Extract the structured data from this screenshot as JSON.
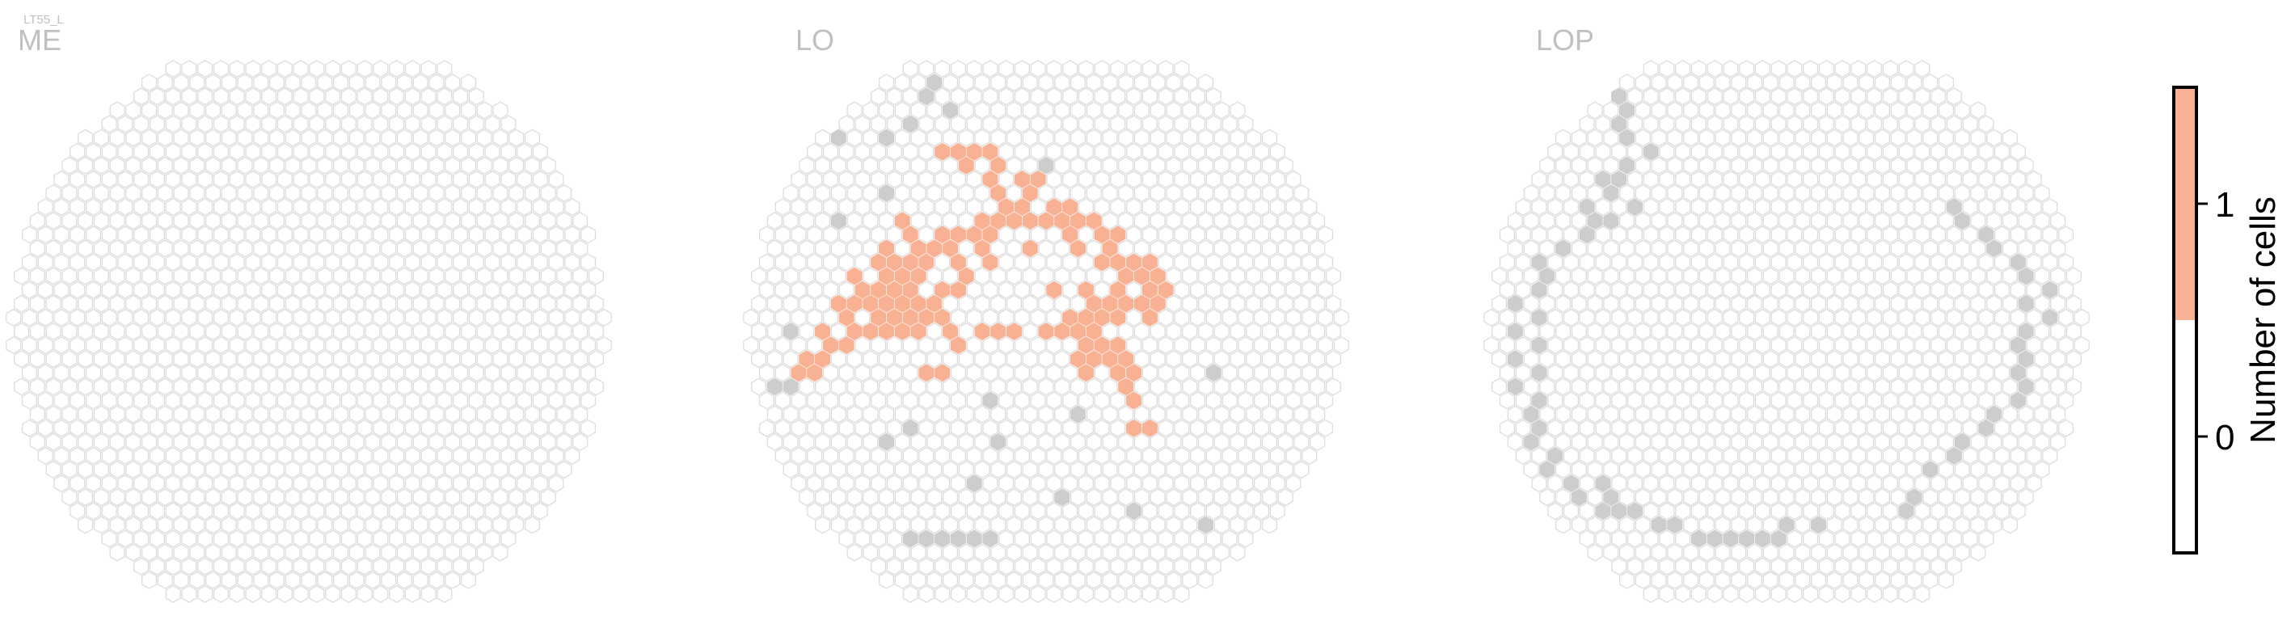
{
  "chart_data": {
    "type": "heatmap",
    "subtitle": "LT55_L",
    "colors": {
      "empty_fill": "#ffffff",
      "empty_stroke": "#dcdcdc",
      "value_fill": "#f8b193",
      "edge_fill": "#cdcdcd"
    },
    "colorbar": {
      "label": "Number of cells",
      "ticks": [
        0,
        1
      ],
      "range": [
        -0.5,
        1.5
      ],
      "bins": [
        {
          "from": -0.5,
          "to": 0.5,
          "color": "#ffffff"
        },
        {
          "from": 0.5,
          "to": 1.5,
          "color": "#f8b193"
        }
      ]
    },
    "panels": [
      {
        "title": "ME",
        "cells_with_value_1": [],
        "edge_cells": []
      },
      {
        "title": "LO",
        "cells_with_value_1": [
          [
            -7,
            -13
          ],
          [
            -6,
            -13
          ],
          [
            -5,
            -13
          ],
          [
            -4,
            -13
          ],
          [
            -5,
            -12
          ],
          [
            -3,
            -12
          ],
          [
            -4,
            -11
          ],
          [
            -2,
            -11
          ],
          [
            -1,
            -11
          ],
          [
            -3,
            -10
          ],
          [
            -1,
            -10
          ],
          [
            -3,
            -9
          ],
          [
            -2,
            -9
          ],
          [
            0,
            -9
          ],
          [
            1,
            -9
          ],
          [
            -9,
            -8
          ],
          [
            -4,
            -8
          ],
          [
            -3,
            -8
          ],
          [
            -2,
            -8
          ],
          [
            -1,
            -8
          ],
          [
            0,
            -8
          ],
          [
            1,
            -8
          ],
          [
            2,
            -8
          ],
          [
            3,
            -8
          ],
          [
            -9,
            -7
          ],
          [
            -7,
            -7
          ],
          [
            -6,
            -7
          ],
          [
            -5,
            -7
          ],
          [
            -4,
            -7
          ],
          [
            1,
            -7
          ],
          [
            3,
            -7
          ],
          [
            4,
            -7
          ],
          [
            -10,
            -6
          ],
          [
            -8,
            -6
          ],
          [
            -7,
            -6
          ],
          [
            -6,
            -6
          ],
          [
            -4,
            -6
          ],
          [
            -1,
            -6
          ],
          [
            2,
            -6
          ],
          [
            4,
            -6
          ],
          [
            -11,
            -5
          ],
          [
            -10,
            -5
          ],
          [
            -9,
            -5
          ],
          [
            -8,
            -5
          ],
          [
            -6,
            -5
          ],
          [
            -4,
            -5
          ],
          [
            3,
            -5
          ],
          [
            4,
            -5
          ],
          [
            5,
            -5
          ],
          [
            6,
            -5
          ],
          [
            -12,
            -4
          ],
          [
            -10,
            -4
          ],
          [
            -9,
            -4
          ],
          [
            -8,
            -4
          ],
          [
            -5,
            -4
          ],
          [
            5,
            -4
          ],
          [
            6,
            -4
          ],
          [
            7,
            -4
          ],
          [
            -12,
            -3
          ],
          [
            -11,
            -3
          ],
          [
            -10,
            -3
          ],
          [
            -9,
            -3
          ],
          [
            -7,
            -3
          ],
          [
            -6,
            -3
          ],
          [
            0,
            -3
          ],
          [
            2,
            -3
          ],
          [
            4,
            -3
          ],
          [
            6,
            -3
          ],
          [
            7,
            -3
          ],
          [
            -13,
            -2
          ],
          [
            -12,
            -2
          ],
          [
            -11,
            -2
          ],
          [
            -10,
            -2
          ],
          [
            -9,
            -2
          ],
          [
            -8,
            -2
          ],
          [
            -7,
            -2
          ],
          [
            3,
            -2
          ],
          [
            4,
            -2
          ],
          [
            5,
            -2
          ],
          [
            6,
            -2
          ],
          [
            7,
            -2
          ],
          [
            -13,
            -1
          ],
          [
            -11,
            -1
          ],
          [
            -10,
            -1
          ],
          [
            -9,
            -1
          ],
          [
            -8,
            -1
          ],
          [
            -7,
            -1
          ],
          [
            1,
            -1
          ],
          [
            2,
            -1
          ],
          [
            3,
            -1
          ],
          [
            4,
            -1
          ],
          [
            6,
            -1
          ],
          [
            -14,
            0
          ],
          [
            -12,
            0
          ],
          [
            -11,
            0
          ],
          [
            -10,
            0
          ],
          [
            -9,
            0
          ],
          [
            -8,
            0
          ],
          [
            -6,
            0
          ],
          [
            -4,
            0
          ],
          [
            -3,
            0
          ],
          [
            -2,
            0
          ],
          [
            0,
            0
          ],
          [
            1,
            0
          ],
          [
            2,
            0
          ],
          [
            3,
            0
          ],
          [
            -14,
            1
          ],
          [
            -13,
            1
          ],
          [
            -6,
            1
          ],
          [
            2,
            1
          ],
          [
            3,
            1
          ],
          [
            4,
            1
          ],
          [
            -15,
            2
          ],
          [
            -14,
            2
          ],
          [
            2,
            2
          ],
          [
            3,
            2
          ],
          [
            4,
            2
          ],
          [
            5,
            2
          ],
          [
            -16,
            3
          ],
          [
            -15,
            3
          ],
          [
            -8,
            3
          ],
          [
            -7,
            3
          ],
          [
            2,
            3
          ],
          [
            4,
            3
          ],
          [
            5,
            3
          ],
          [
            5,
            4
          ],
          [
            5,
            5
          ],
          [
            5,
            7
          ],
          [
            6,
            7
          ]
        ],
        "edge_cells": [
          [
            -7,
            -18
          ],
          [
            -8,
            -17
          ],
          [
            -6,
            -16
          ],
          [
            -9,
            -15
          ],
          [
            -10,
            -14
          ],
          [
            -13,
            -14
          ],
          [
            0,
            -12
          ],
          [
            -10,
            -10
          ],
          [
            -13,
            -8
          ],
          [
            2,
            -6
          ],
          [
            4,
            -2
          ],
          [
            -16,
            0
          ],
          [
            10,
            3
          ],
          [
            -17,
            4
          ],
          [
            -16,
            4
          ],
          [
            -4,
            5
          ],
          [
            2,
            6
          ],
          [
            -9,
            7
          ],
          [
            -10,
            8
          ],
          [
            -3,
            8
          ],
          [
            -5,
            11
          ],
          [
            1,
            12
          ],
          [
            5,
            13
          ],
          [
            10,
            14
          ],
          [
            -9,
            15
          ],
          [
            -8,
            15
          ],
          [
            -7,
            15
          ],
          [
            -6,
            15
          ],
          [
            -5,
            15
          ],
          [
            -4,
            15
          ]
        ]
      },
      {
        "title": "LOP",
        "cells_with_value_1": [],
        "edge_cells": [
          [
            -11,
            -17
          ],
          [
            -10,
            -16
          ],
          [
            -11,
            -15
          ],
          [
            -10,
            -14
          ],
          [
            -9,
            -13
          ],
          [
            -10,
            -12
          ],
          [
            -11,
            -11
          ],
          [
            -12,
            -11
          ],
          [
            -11,
            -10
          ],
          [
            -10,
            -9
          ],
          [
            -13,
            -9
          ],
          [
            -12,
            -8
          ],
          [
            -11,
            -8
          ],
          [
            -13,
            -7
          ],
          [
            -14,
            -6
          ],
          [
            -16,
            -5
          ],
          [
            -15,
            -4
          ],
          [
            -16,
            -3
          ],
          [
            -17,
            -2
          ],
          [
            -16,
            -1
          ],
          [
            -17,
            0
          ],
          [
            -16,
            1
          ],
          [
            -17,
            2
          ],
          [
            -16,
            3
          ],
          [
            -17,
            4
          ],
          [
            -16,
            5
          ],
          [
            -16,
            6
          ],
          [
            -16,
            7
          ],
          [
            -16,
            8
          ],
          [
            -15,
            9
          ],
          [
            -15,
            10
          ],
          [
            -14,
            11
          ],
          [
            -12,
            11
          ],
          [
            -13,
            12
          ],
          [
            -11,
            12
          ],
          [
            -12,
            13
          ],
          [
            -11,
            13
          ],
          [
            -10,
            13
          ],
          [
            -8,
            14
          ],
          [
            -7,
            14
          ],
          [
            -6,
            15
          ],
          [
            -5,
            15
          ],
          [
            -4,
            15
          ],
          [
            -3,
            15
          ],
          [
            -2,
            15
          ],
          [
            -1,
            15
          ],
          [
            0,
            14
          ],
          [
            2,
            14
          ],
          [
            7,
            13
          ],
          [
            8,
            12
          ],
          [
            9,
            10
          ],
          [
            10,
            9
          ],
          [
            11,
            8
          ],
          [
            12,
            7
          ],
          [
            13,
            6
          ],
          [
            14,
            5
          ],
          [
            15,
            4
          ],
          [
            14,
            3
          ],
          [
            15,
            2
          ],
          [
            14,
            1
          ],
          [
            15,
            0
          ],
          [
            16,
            -1
          ],
          [
            15,
            -2
          ],
          [
            16,
            -3
          ],
          [
            15,
            -4
          ],
          [
            14,
            -5
          ],
          [
            13,
            -6
          ],
          [
            12,
            -7
          ],
          [
            11,
            -8
          ],
          [
            10,
            -9
          ]
        ]
      }
    ]
  }
}
